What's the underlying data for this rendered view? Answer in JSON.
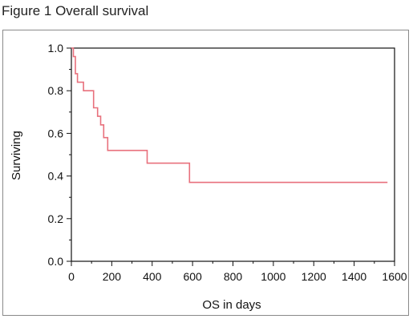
{
  "figure_title": "Figure 1 Overall survival",
  "chart_data": {
    "type": "line",
    "title": "",
    "xlabel": "OS in days",
    "ylabel": "Surviving",
    "xlim": [
      0,
      1600
    ],
    "ylim": [
      0.0,
      1.0
    ],
    "x_ticks": [
      0,
      200,
      400,
      600,
      800,
      1000,
      1200,
      1400,
      1600
    ],
    "x_tick_labels": [
      "0",
      "200",
      "400",
      "600",
      "800",
      "1000",
      "1200",
      "1400",
      "1600"
    ],
    "y_ticks": [
      0.0,
      0.2,
      0.4,
      0.6,
      0.8,
      1.0
    ],
    "y_tick_labels": [
      "0.0",
      "0.2",
      "0.4",
      "0.6",
      "0.8",
      "1.0"
    ],
    "grid": false,
    "step": true,
    "series": [
      {
        "color": "#e8707c",
        "x": [
          0,
          10,
          20,
          30,
          60,
          110,
          130,
          145,
          160,
          180,
          375,
          585,
          1565
        ],
        "y": [
          1.0,
          0.96,
          0.88,
          0.84,
          0.8,
          0.72,
          0.68,
          0.64,
          0.58,
          0.52,
          0.46,
          0.37,
          0.37
        ]
      }
    ]
  }
}
